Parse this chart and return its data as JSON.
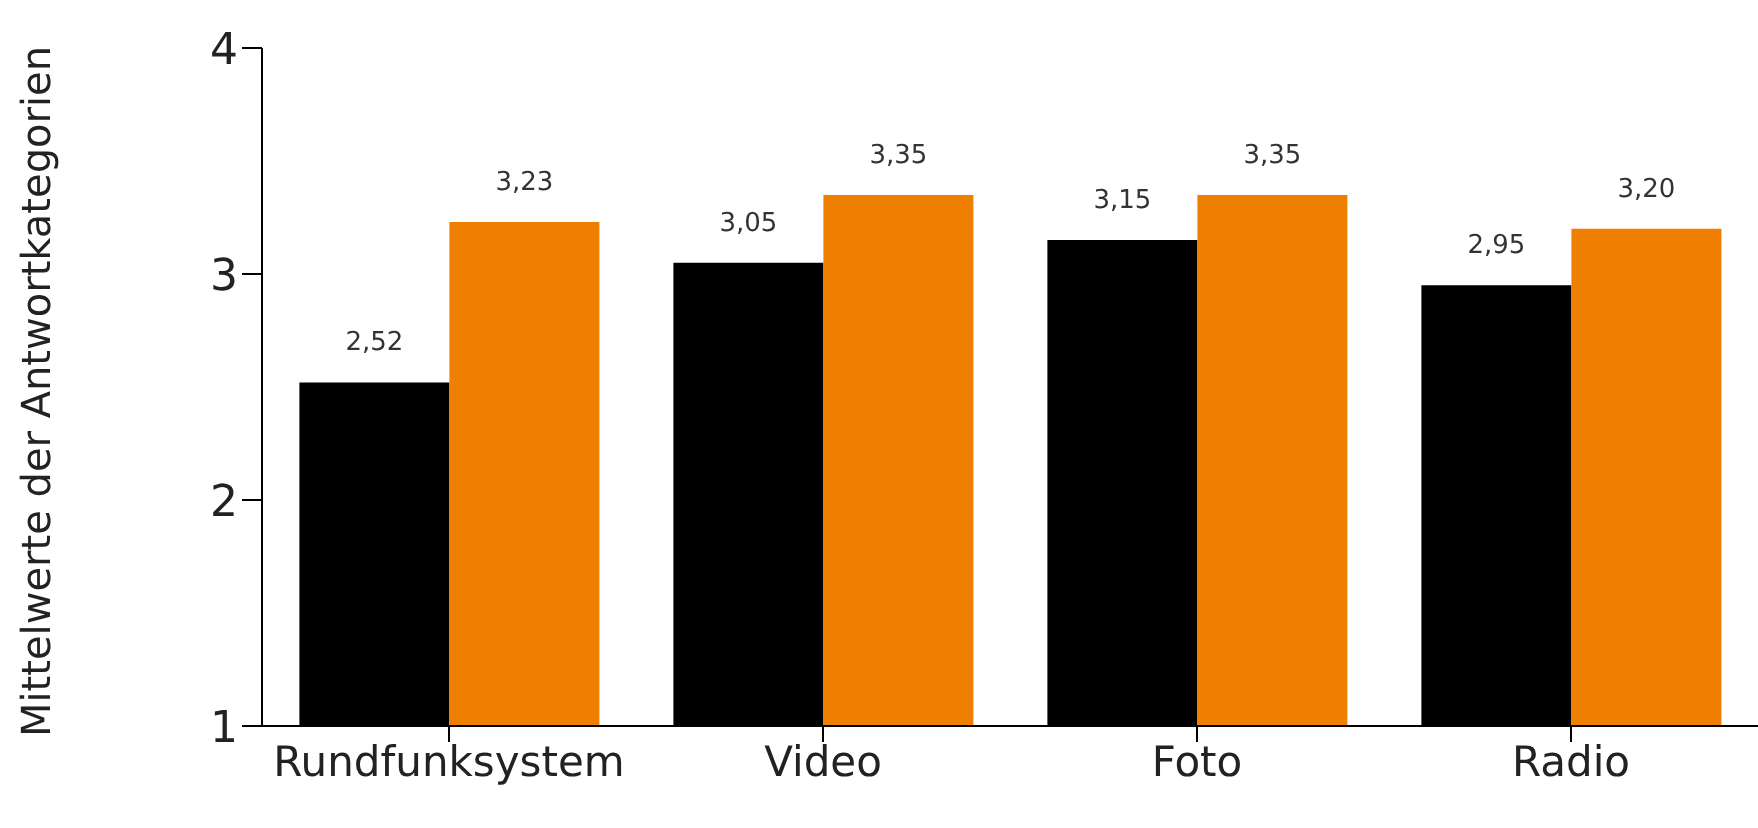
{
  "chart_data": {
    "type": "bar",
    "ylabel": "Mittelwerte der Antwortkategorien",
    "categories": [
      "Rundfunksystem",
      "Video",
      "Foto",
      "Radio"
    ],
    "series": [
      {
        "color": "#000000",
        "values": [
          2.52,
          3.05,
          3.15,
          2.95
        ],
        "value_labels": [
          "2,52",
          "3,05",
          "3,15",
          "2,95"
        ]
      },
      {
        "color": "#ee7f00",
        "values": [
          3.23,
          3.35,
          3.35,
          3.2
        ],
        "value_labels": [
          "3,23",
          "3,35",
          "3,35",
          "3,20"
        ]
      }
    ],
    "ylim": [
      1,
      4
    ],
    "yticks": [
      1,
      2,
      3,
      4
    ],
    "grid": false,
    "legend": false
  }
}
